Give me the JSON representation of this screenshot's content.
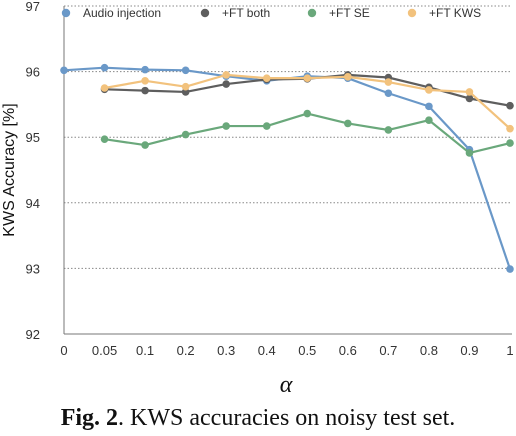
{
  "chart_data": {
    "type": "line",
    "categories": [
      "0",
      "0.05",
      "0.1",
      "0.2",
      "0.3",
      "0.4",
      "0.5",
      "0.6",
      "0.7",
      "0.8",
      "0.9",
      "1"
    ],
    "ylim": [
      92,
      97
    ],
    "yticks": [
      92,
      93,
      94,
      95,
      96,
      97
    ],
    "xlabel": "α",
    "ylabel": "KWS Accuracy [%]",
    "grid": "horizontal dotted",
    "legend_position": "top",
    "series": [
      {
        "name": "Audio injection",
        "color": "#6a98c8",
        "values": [
          96.02,
          96.06,
          96.03,
          96.02,
          95.93,
          95.86,
          95.93,
          95.9,
          95.67,
          95.47,
          94.81,
          92.99
        ]
      },
      {
        "name": "+FT both",
        "color": "#5e5e5e",
        "values": [
          null,
          95.73,
          95.71,
          95.69,
          95.81,
          95.88,
          95.89,
          95.95,
          95.91,
          95.76,
          95.59,
          95.48
        ]
      },
      {
        "name": "+FT SE",
        "color": "#6aa87b",
        "values": [
          null,
          94.97,
          94.88,
          95.04,
          95.17,
          95.17,
          95.36,
          95.21,
          95.11,
          95.26,
          94.76,
          94.91
        ]
      },
      {
        "name": "+FT KWS",
        "color": "#f2c27d",
        "values": [
          null,
          95.75,
          95.86,
          95.77,
          95.95,
          95.9,
          95.9,
          95.92,
          95.84,
          95.72,
          95.69,
          95.13
        ]
      }
    ]
  },
  "caption": {
    "label": "Fig. 2",
    "text": ". KWS accuracies on noisy test set."
  }
}
